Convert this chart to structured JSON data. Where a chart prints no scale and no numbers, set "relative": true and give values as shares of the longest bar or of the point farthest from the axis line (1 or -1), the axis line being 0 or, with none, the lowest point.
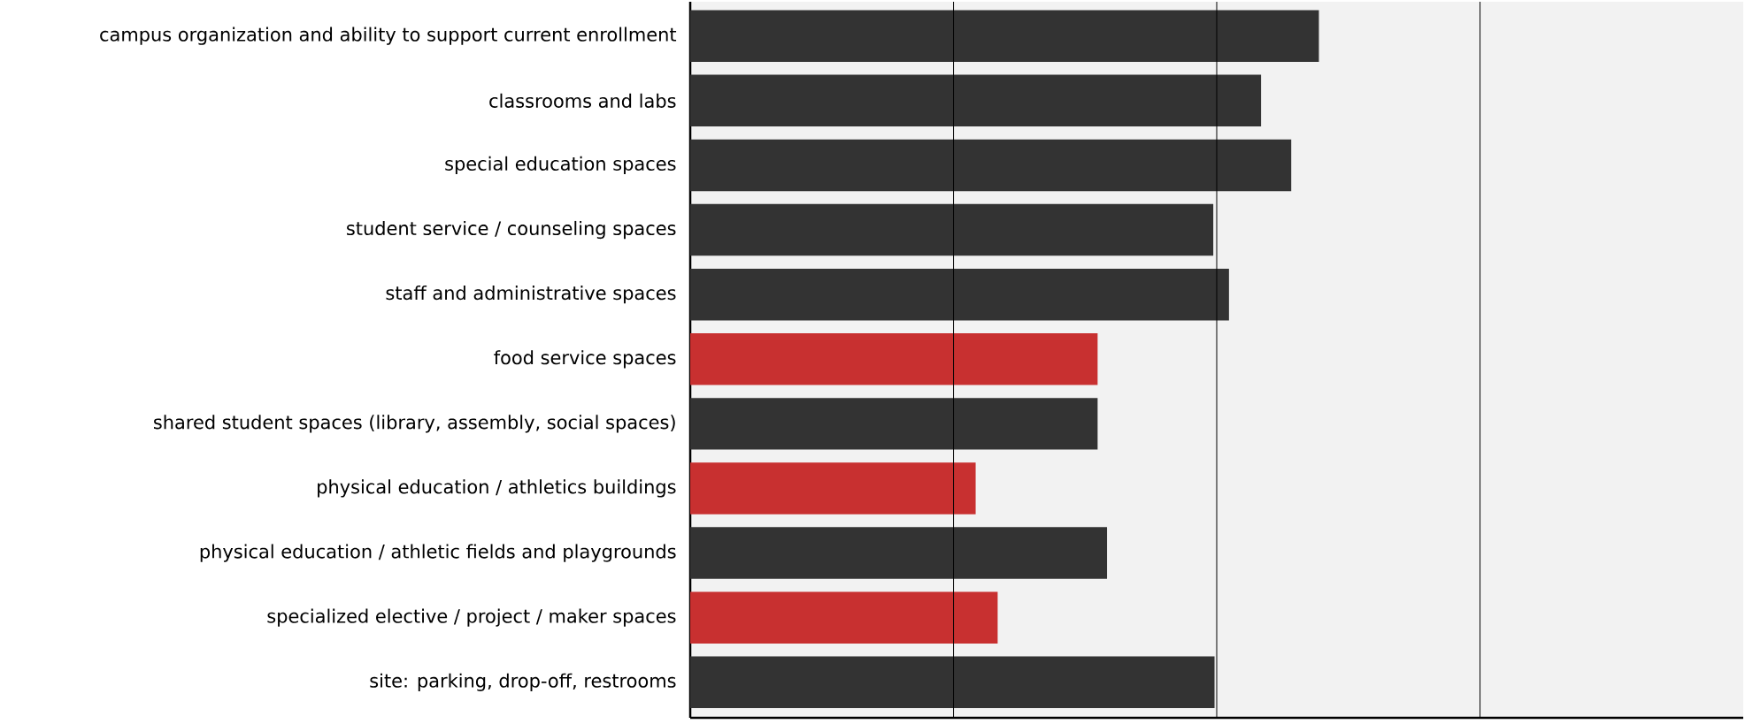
{
  "chart_data": {
    "type": "bar",
    "orientation": "horizontal",
    "relative": true,
    "ref_lines": [
      {
        "axis": "x",
        "value": 0.4188,
        "color": "#000000"
      },
      {
        "axis": "x",
        "value": 0.8375,
        "color": "#000000"
      },
      {
        "axis": "x",
        "value": 1.2563,
        "color": "#000000"
      }
    ],
    "categories": [
      "campus organization and ability to support current enrollment",
      "classrooms and labs",
      "special education spaces",
      "student service / counseling spaces",
      "staff and administrative spaces",
      "food service spaces",
      "shared student spaces (library, assembly, social spaces)",
      "physical education / athletics buildings",
      "physical education / athletic fields and playgrounds",
      "specialized elective / project / maker spaces",
      "site: parking, drop-off, restrooms"
    ],
    "values": [
      1,
      0.908,
      0.956,
      0.832,
      0.857,
      0.648,
      0.648,
      0.454,
      0.663,
      0.489,
      0.834
    ],
    "colors": [
      "#333333",
      "#333333",
      "#333333",
      "#333333",
      "#333333",
      "#c83030",
      "#333333",
      "#c83030",
      "#333333",
      "#c83030",
      "#333333"
    ]
  }
}
